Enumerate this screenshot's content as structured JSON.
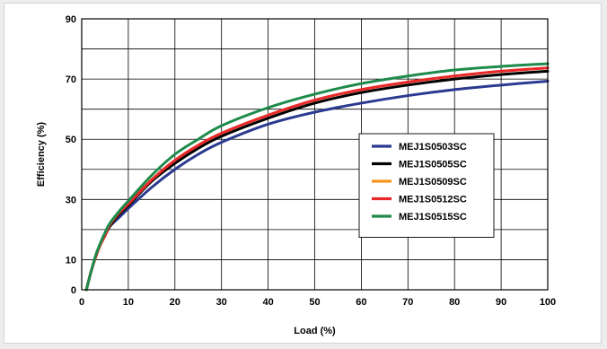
{
  "chart_data": {
    "type": "line",
    "title": "",
    "xlabel": "Load (%)",
    "ylabel": "Efficiency (%)",
    "xlim": [
      0,
      100
    ],
    "ylim": [
      0,
      90
    ],
    "x_ticks": [
      0,
      10,
      20,
      30,
      40,
      50,
      60,
      70,
      80,
      90,
      100
    ],
    "y_ticks": [
      0,
      10,
      30,
      50,
      70,
      90
    ],
    "grid": true,
    "legend_position": "right",
    "x": [
      1,
      2,
      3,
      4,
      5,
      6,
      8,
      10,
      15,
      20,
      25,
      30,
      40,
      50,
      60,
      70,
      80,
      90,
      100
    ],
    "series": [
      {
        "name": "MEJ1S0503SC",
        "color": "#2b3990",
        "values": [
          0,
          6,
          11,
          15,
          18,
          21,
          24,
          27,
          34,
          40,
          45,
          49,
          55,
          59,
          62,
          64.5,
          66.5,
          68,
          69.3
        ]
      },
      {
        "name": "MEJ1S0505SC",
        "color": "#000000",
        "values": [
          0,
          6,
          11,
          15,
          18,
          21,
          25,
          28,
          36,
          42,
          47,
          51,
          57,
          62,
          65.5,
          68,
          70,
          71.5,
          72.6
        ]
      },
      {
        "name": "MEJ1S0509SC",
        "color": "#f7941d",
        "values": [
          0,
          6,
          11,
          15,
          18,
          21.5,
          25.5,
          28.5,
          36.5,
          43,
          48,
          52,
          58,
          63,
          66.5,
          69,
          71,
          72.6,
          73.7
        ]
      },
      {
        "name": "MEJ1S0512SC",
        "color": "#e8282b",
        "values": [
          0,
          6,
          11,
          15,
          18,
          21.5,
          25.5,
          28.5,
          36.5,
          43,
          48,
          52,
          58,
          63,
          66.5,
          69,
          71,
          72.6,
          73.7
        ]
      },
      {
        "name": "MEJ1S0515SC",
        "color": "#1e8a4b",
        "values": [
          0,
          6,
          11.5,
          15.5,
          19,
          22,
          26,
          29.5,
          38,
          45,
          50,
          54.5,
          60.5,
          65,
          68.5,
          71,
          73,
          74.2,
          75.1
        ]
      }
    ]
  }
}
